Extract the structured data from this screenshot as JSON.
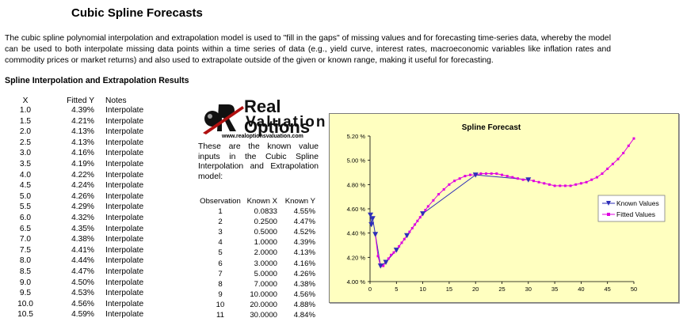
{
  "title": "Cubic Spline Forecasts",
  "intro": "The cubic spline polynomial interpolation and extrapolation model is used to \"fill in the gaps\" of missing values and for forecasting time-series data, whereby the model can be used to both interpolate missing data points within a time series of data (e.g., yield curve, interest rates, macroeconomic variables like inflation rates and commodity prices or market returns) and also used to extrapolate outside of the given or known range, making it useful for forecasting.",
  "section_title": "Spline Interpolation and Extrapolation Results",
  "results": {
    "headers": {
      "x": "X",
      "y": "Fitted Y",
      "notes": "Notes"
    },
    "rows": [
      {
        "x": "1.0",
        "y": "4.39%",
        "note": "Interpolate"
      },
      {
        "x": "1.5",
        "y": "4.21%",
        "note": "Interpolate"
      },
      {
        "x": "2.0",
        "y": "4.13%",
        "note": "Interpolate"
      },
      {
        "x": "2.5",
        "y": "4.13%",
        "note": "Interpolate"
      },
      {
        "x": "3.0",
        "y": "4.16%",
        "note": "Interpolate"
      },
      {
        "x": "3.5",
        "y": "4.19%",
        "note": "Interpolate"
      },
      {
        "x": "4.0",
        "y": "4.22%",
        "note": "Interpolate"
      },
      {
        "x": "4.5",
        "y": "4.24%",
        "note": "Interpolate"
      },
      {
        "x": "5.0",
        "y": "4.26%",
        "note": "Interpolate"
      },
      {
        "x": "5.5",
        "y": "4.29%",
        "note": "Interpolate"
      },
      {
        "x": "6.0",
        "y": "4.32%",
        "note": "Interpolate"
      },
      {
        "x": "6.5",
        "y": "4.35%",
        "note": "Interpolate"
      },
      {
        "x": "7.0",
        "y": "4.38%",
        "note": "Interpolate"
      },
      {
        "x": "7.5",
        "y": "4.41%",
        "note": "Interpolate"
      },
      {
        "x": "8.0",
        "y": "4.44%",
        "note": "Interpolate"
      },
      {
        "x": "8.5",
        "y": "4.47%",
        "note": "Interpolate"
      },
      {
        "x": "9.0",
        "y": "4.50%",
        "note": "Interpolate"
      },
      {
        "x": "9.5",
        "y": "4.53%",
        "note": "Interpolate"
      },
      {
        "x": "10.0",
        "y": "4.56%",
        "note": "Interpolate"
      },
      {
        "x": "10.5",
        "y": "4.59%",
        "note": "Interpolate"
      }
    ]
  },
  "logo": {
    "line1": "Real Options",
    "line2": "Valuation",
    "url": "www.realoptionsvaluation.com"
  },
  "known_desc": "These are the known value inputs in the Cubic Spline Interpolation and Extrapolation model:",
  "known": {
    "headers": {
      "obs": "Observation",
      "x": "Known X",
      "y": "Known Y"
    },
    "rows": [
      {
        "obs": "1",
        "x": "0.0833",
        "y": "4.55%"
      },
      {
        "obs": "2",
        "x": "0.2500",
        "y": "4.47%"
      },
      {
        "obs": "3",
        "x": "0.5000",
        "y": "4.52%"
      },
      {
        "obs": "4",
        "x": "1.0000",
        "y": "4.39%"
      },
      {
        "obs": "5",
        "x": "2.0000",
        "y": "4.13%"
      },
      {
        "obs": "6",
        "x": "3.0000",
        "y": "4.16%"
      },
      {
        "obs": "7",
        "x": "5.0000",
        "y": "4.26%"
      },
      {
        "obs": "8",
        "x": "7.0000",
        "y": "4.38%"
      },
      {
        "obs": "9",
        "x": "10.0000",
        "y": "4.56%"
      },
      {
        "obs": "10",
        "x": "20.0000",
        "y": "4.88%"
      },
      {
        "obs": "11",
        "x": "30.0000",
        "y": "4.84%"
      }
    ]
  },
  "chart_data": {
    "type": "line",
    "title": "Spline Forecast",
    "xlabel": "",
    "ylabel": "",
    "xlim": [
      0,
      50
    ],
    "ylim": [
      4.0,
      5.2
    ],
    "xticks": [
      "0",
      "5",
      "10",
      "15",
      "20",
      "25",
      "30",
      "35",
      "40",
      "45",
      "50"
    ],
    "yticks": [
      "4.00 %",
      "4.20 %",
      "4.40 %",
      "4.60 %",
      "4.80 %",
      "5.00 %",
      "5.20 %"
    ],
    "legend_position": "right",
    "grid": false,
    "colors": {
      "known": "#2e2eb8",
      "fitted": "#e000e0",
      "background": "#ffffc0"
    },
    "series": [
      {
        "name": "Known Values",
        "marker": "triangle-down",
        "x": [
          0.0833,
          0.25,
          0.5,
          1,
          2,
          3,
          5,
          7,
          10,
          20,
          30
        ],
        "y": [
          4.55,
          4.47,
          4.52,
          4.39,
          4.13,
          4.16,
          4.26,
          4.38,
          4.56,
          4.88,
          4.84
        ]
      },
      {
        "name": "Fitted Values",
        "marker": "square",
        "x": [
          1,
          1.5,
          2,
          2.5,
          3,
          3.5,
          4,
          4.5,
          5,
          5.5,
          6,
          6.5,
          7,
          7.5,
          8,
          8.5,
          9,
          9.5,
          10,
          10.5,
          11,
          12,
          13,
          14,
          15,
          16,
          17,
          18,
          19,
          20,
          21,
          22,
          23,
          24,
          25,
          26,
          27,
          28,
          29,
          30,
          31,
          32,
          33,
          34,
          35,
          36,
          37,
          38,
          39,
          40,
          41,
          42,
          43,
          44,
          45,
          46,
          47,
          48,
          49,
          50
        ],
        "y": [
          4.39,
          4.21,
          4.13,
          4.13,
          4.16,
          4.19,
          4.22,
          4.24,
          4.26,
          4.29,
          4.32,
          4.35,
          4.38,
          4.41,
          4.44,
          4.47,
          4.5,
          4.53,
          4.56,
          4.59,
          4.62,
          4.67,
          4.72,
          4.76,
          4.8,
          4.83,
          4.85,
          4.87,
          4.88,
          4.88,
          4.89,
          4.89,
          4.89,
          4.89,
          4.88,
          4.87,
          4.86,
          4.85,
          4.84,
          4.84,
          4.83,
          4.82,
          4.81,
          4.8,
          4.79,
          4.79,
          4.79,
          4.79,
          4.8,
          4.81,
          4.82,
          4.84,
          4.86,
          4.89,
          4.93,
          4.97,
          5.01,
          5.06,
          5.12,
          5.18
        ]
      }
    ]
  }
}
